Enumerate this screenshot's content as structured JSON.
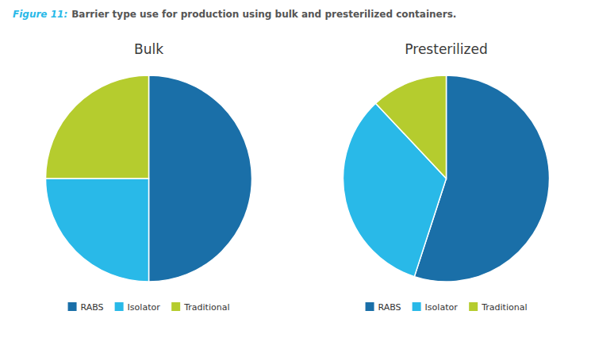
{
  "title": "Figure 11:",
  "subtitle": "Barrier type use for production using bulk and presterilized containers.",
  "chart_data": [
    {
      "type": "pie",
      "title": "Bulk",
      "categories": [
        "RABS",
        "Isolator",
        "Traditional"
      ],
      "values": [
        50,
        25,
        25
      ],
      "colors": [
        "#1a6fa8",
        "#29b9e8",
        "#b5cc2e"
      ],
      "legend": "bottom"
    },
    {
      "type": "pie",
      "title": "Presterilized",
      "categories": [
        "RABS",
        "Isolator",
        "Traditional"
      ],
      "values": [
        55,
        33,
        12
      ],
      "colors": [
        "#1a6fa8",
        "#29b9e8",
        "#b5cc2e"
      ],
      "legend": "bottom"
    }
  ]
}
